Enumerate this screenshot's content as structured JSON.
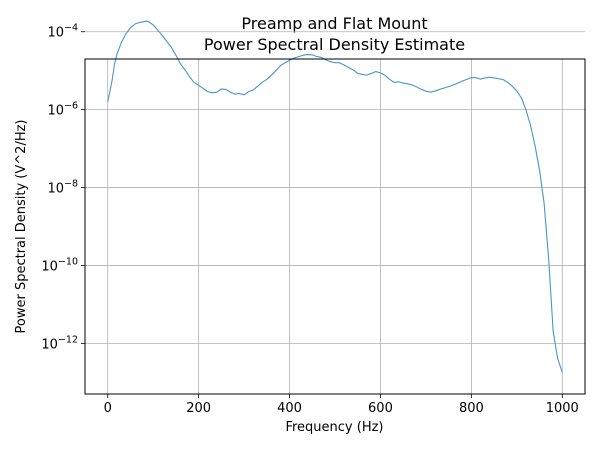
{
  "chart_data": {
    "type": "line",
    "title": [
      "Preamp and Flat Mount",
      "Power Spectral Density Estimate"
    ],
    "xlabel": "Frequency (Hz)",
    "ylabel": "Power Spectral Density (V^2/Hz)",
    "xlim": [
      -50,
      1050
    ],
    "ylim_log10": [
      -13.3,
      -4.7
    ],
    "yscale": "log",
    "grid": true,
    "legend": "none",
    "line_color": "#4a95c8",
    "x_ticks": [
      0,
      200,
      400,
      600,
      800,
      1000
    ],
    "x_tick_labels": [
      "0",
      "200",
      "400",
      "600",
      "800",
      "1000"
    ],
    "y_ticks": [
      {
        "exp": -4,
        "base": "10",
        "sup": "−4"
      },
      {
        "exp": -6,
        "base": "10",
        "sup": "−6"
      },
      {
        "exp": -8,
        "base": "10",
        "sup": "−8"
      },
      {
        "exp": -10,
        "base": "10",
        "sup": "−10"
      },
      {
        "exp": -12,
        "base": "10",
        "sup": "−12"
      }
    ],
    "series": [
      {
        "x": [
          0,
          5,
          10,
          15,
          20,
          30,
          40,
          50,
          60,
          70,
          80,
          85,
          90,
          100,
          110,
          120,
          130,
          140,
          150,
          160,
          170,
          180,
          190,
          200,
          210,
          220,
          230,
          240,
          250,
          260,
          270,
          280,
          290,
          300,
          310,
          320,
          330,
          340,
          350,
          360,
          370,
          380,
          390,
          400,
          410,
          420,
          430,
          440,
          450,
          460,
          470,
          480,
          490,
          500,
          510,
          520,
          530,
          540,
          550,
          560,
          570,
          580,
          590,
          600,
          610,
          620,
          630,
          640,
          650,
          660,
          670,
          680,
          690,
          700,
          710,
          720,
          730,
          740,
          750,
          760,
          770,
          780,
          790,
          800,
          810,
          820,
          830,
          840,
          850,
          860,
          870,
          880,
          890,
          900,
          910,
          920,
          930,
          940,
          950,
          960,
          970,
          980,
          990,
          1000
        ],
        "y": [
          1.6e-06,
          3e-06,
          6e-06,
          1.5e-05,
          2.6e-05,
          5.3e-05,
          8.9e-05,
          0.000126,
          0.000158,
          0.000173,
          0.000181,
          0.000188,
          0.00018,
          0.00015,
          0.00011,
          8e-05,
          5.6e-05,
          4e-05,
          2.5e-05,
          1.5e-05,
          1.05e-05,
          7e-06,
          5e-06,
          4.2e-06,
          3.5e-06,
          2.9e-06,
          2.7e-06,
          2.8e-06,
          3.4e-06,
          3.3e-06,
          2.8e-06,
          2.5e-06,
          2.6e-06,
          2.4e-06,
          2.9e-06,
          3.2e-06,
          4e-06,
          5e-06,
          6e-06,
          7.6e-06,
          1e-05,
          1.35e-05,
          1.6e-05,
          1.85e-05,
          2.1e-05,
          2.3e-05,
          2.5e-05,
          2.6e-05,
          2.55e-05,
          2.3e-05,
          2.2e-05,
          1.9e-05,
          1.7e-05,
          1.6e-05,
          1.6e-05,
          1.4e-05,
          1.2e-05,
          1.05e-05,
          8.5e-06,
          8e-06,
          7.7e-06,
          8.5e-06,
          9.5e-06,
          8.8e-06,
          7.6e-06,
          6e-06,
          5e-06,
          5.2e-06,
          4.8e-06,
          4.6e-06,
          4.3e-06,
          3.8e-06,
          3.3e-06,
          3e-06,
          2.8e-06,
          3e-06,
          3.3e-06,
          3.6e-06,
          3.9e-06,
          4.3e-06,
          4.8e-06,
          5.4e-06,
          6e-06,
          6.7e-06,
          6.6e-06,
          6.1e-06,
          6.5e-06,
          6.8e-06,
          6.5e-06,
          6.2e-06,
          5.9e-06,
          5e-06,
          4e-06,
          3e-06,
          2e-06,
          1e-06,
          4e-07,
          1.2e-07,
          2.8e-08,
          4e-09,
          1.5e-10,
          2e-12,
          4e-13,
          1.8e-13
        ]
      }
    ]
  }
}
